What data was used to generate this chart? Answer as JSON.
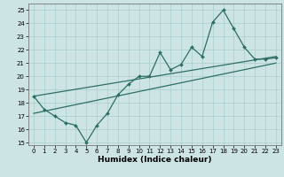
{
  "title": "",
  "xlabel": "Humidex (Indice chaleur)",
  "xlim": [
    -0.5,
    23.5
  ],
  "ylim": [
    14.8,
    25.5
  ],
  "yticks": [
    15,
    16,
    17,
    18,
    19,
    20,
    21,
    22,
    23,
    24,
    25
  ],
  "xticks": [
    0,
    1,
    2,
    3,
    4,
    5,
    6,
    7,
    8,
    9,
    10,
    11,
    12,
    13,
    14,
    15,
    16,
    17,
    18,
    19,
    20,
    21,
    22,
    23
  ],
  "bg_color": "#cde4e4",
  "grid_color": "#aacccc",
  "line_color": "#2d6e65",
  "series1_x": [
    0,
    1,
    2,
    3,
    4,
    5,
    6,
    7,
    8,
    9,
    10,
    11,
    12,
    13,
    14,
    15,
    16,
    17,
    18,
    19,
    20,
    21,
    22,
    23
  ],
  "series1_y": [
    18.5,
    17.5,
    17.0,
    16.5,
    16.3,
    15.0,
    16.3,
    17.2,
    18.6,
    19.4,
    20.0,
    20.0,
    21.8,
    20.5,
    20.9,
    22.2,
    21.5,
    24.1,
    25.0,
    23.6,
    22.2,
    21.3,
    21.3,
    21.4
  ],
  "series2_x": [
    0,
    23
  ],
  "series2_y": [
    17.2,
    21.0
  ],
  "series3_x": [
    0,
    23
  ],
  "series3_y": [
    18.5,
    21.5
  ],
  "tick_fontsize": 5.0,
  "xlabel_fontsize": 6.5,
  "marker_size": 2.0,
  "linewidth": 0.9
}
